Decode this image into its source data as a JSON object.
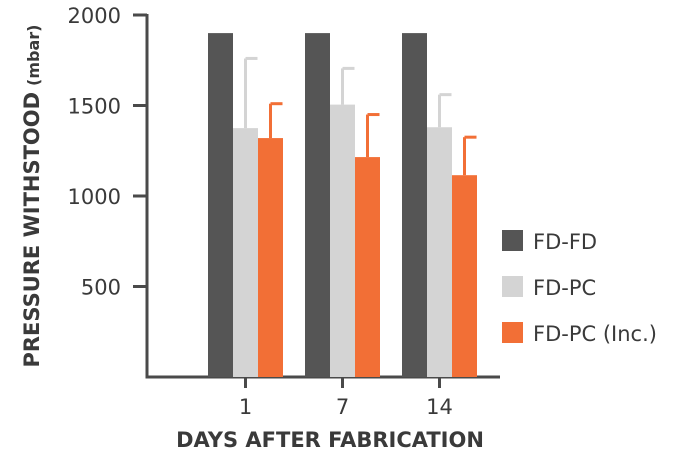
{
  "chart_data": {
    "type": "bar",
    "categories": [
      "1",
      "7",
      "14"
    ],
    "series": [
      {
        "name": "FD-FD",
        "values": [
          1900,
          1900,
          1900
        ],
        "errors": [
          null,
          null,
          null
        ],
        "color": "#555555"
      },
      {
        "name": "FD-PC",
        "values": [
          1375,
          1505,
          1380
        ],
        "errors": [
          385,
          200,
          180
        ],
        "color": "#d4d4d4"
      },
      {
        "name": "FD-PC (Inc.)",
        "values": [
          1320,
          1215,
          1115
        ],
        "errors": [
          190,
          235,
          210
        ],
        "color": "#f26f36"
      }
    ],
    "xlabel": "DAYS AFTER FABRICATION",
    "ylabel": "PRESSURE WITHSTOOD",
    "ylabel_unit": "(mbar)",
    "yticks": [
      500,
      1000,
      1500,
      2000
    ],
    "ylim": [
      0,
      2000
    ],
    "grid": false,
    "legend_position": "right"
  }
}
